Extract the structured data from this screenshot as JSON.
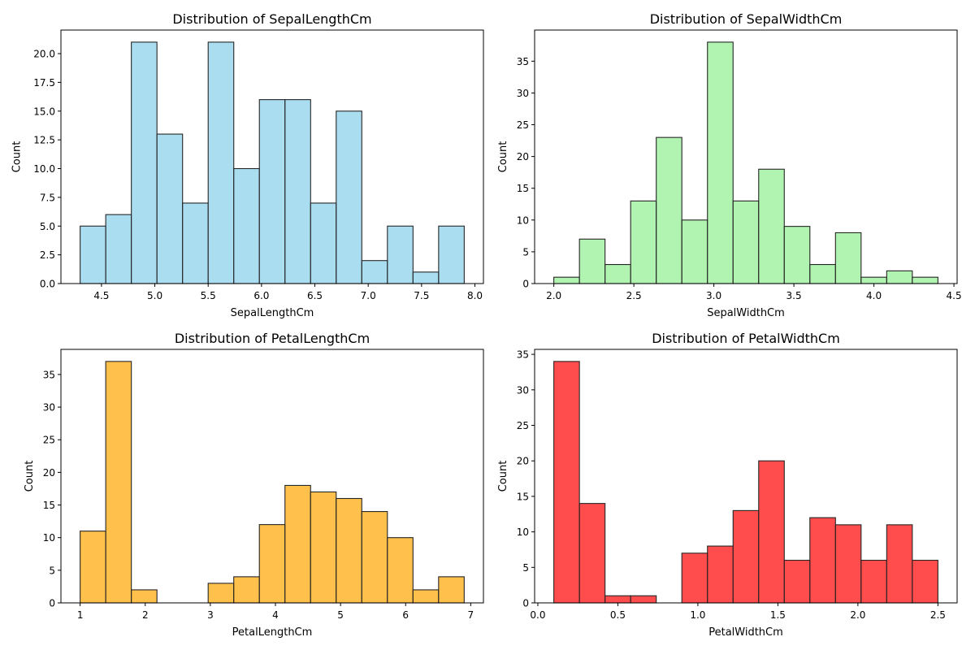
{
  "chart_data": [
    {
      "type": "bar",
      "title": "Distribution of SepalLengthCm",
      "xlabel": "SepalLengthCm",
      "ylabel": "Count",
      "color": "#87ceeb",
      "bin_start": 4.3,
      "bin_width": 0.24,
      "values": [
        5,
        6,
        21,
        13,
        7,
        21,
        10,
        16,
        16,
        7,
        15,
        2,
        5,
        1,
        5
      ],
      "xlim": [
        4.12,
        8.08
      ],
      "ylim": [
        0,
        22.05
      ],
      "xticks": [
        4.5,
        5.0,
        5.5,
        6.0,
        6.5,
        7.0,
        7.5,
        8.0
      ],
      "xtick_labels": [
        "4.5",
        "5.0",
        "5.5",
        "6.0",
        "6.5",
        "7.0",
        "7.5",
        "8.0"
      ],
      "yticks": [
        0,
        2.5,
        5,
        7.5,
        10,
        12.5,
        15,
        17.5,
        20
      ],
      "ytick_labels": [
        "0.0",
        "2.5",
        "5.0",
        "7.5",
        "10.0",
        "12.5",
        "15.0",
        "17.5",
        "20.0"
      ],
      "grid": false
    },
    {
      "type": "bar",
      "title": "Distribution of SepalWidthCm",
      "xlabel": "SepalWidthCm",
      "ylabel": "Count",
      "color": "#90ee90",
      "bin_start": 2.0,
      "bin_width": 0.16,
      "values": [
        1,
        7,
        3,
        13,
        23,
        10,
        38,
        13,
        18,
        9,
        3,
        8,
        1,
        2,
        1
      ],
      "xlim": [
        1.88,
        4.52
      ],
      "ylim": [
        0,
        39.9
      ],
      "xticks": [
        2.0,
        2.5,
        3.0,
        3.5,
        4.0,
        4.5
      ],
      "xtick_labels": [
        "2.0",
        "2.5",
        "3.0",
        "3.5",
        "4.0",
        "4.5"
      ],
      "yticks": [
        0,
        5,
        10,
        15,
        20,
        25,
        30,
        35
      ],
      "ytick_labels": [
        "0",
        "5",
        "10",
        "15",
        "20",
        "25",
        "30",
        "35"
      ],
      "grid": false
    },
    {
      "type": "bar",
      "title": "Distribution of PetalLengthCm",
      "xlabel": "PetalLengthCm",
      "ylabel": "Count",
      "color": "#ffa500",
      "bin_start": 1.0,
      "bin_width": 0.3933,
      "values": [
        11,
        37,
        2,
        0,
        0,
        3,
        4,
        12,
        18,
        17,
        16,
        14,
        10,
        2,
        4
      ],
      "xlim": [
        0.705,
        7.195
      ],
      "ylim": [
        0,
        38.85
      ],
      "xticks": [
        1,
        2,
        3,
        4,
        5,
        6,
        7
      ],
      "xtick_labels": [
        "1",
        "2",
        "3",
        "4",
        "5",
        "6",
        "7"
      ],
      "yticks": [
        0,
        5,
        10,
        15,
        20,
        25,
        30,
        35
      ],
      "ytick_labels": [
        "0",
        "5",
        "10",
        "15",
        "20",
        "25",
        "30",
        "35"
      ],
      "grid": false
    },
    {
      "type": "bar",
      "title": "Distribution of PetalWidthCm",
      "xlabel": "PetalWidthCm",
      "ylabel": "Count",
      "color": "#ff0000",
      "bin_start": 0.1,
      "bin_width": 0.16,
      "values": [
        34,
        14,
        1,
        1,
        0,
        7,
        8,
        13,
        20,
        6,
        12,
        11,
        6,
        11,
        6
      ],
      "xlim": [
        -0.02,
        2.62
      ],
      "ylim": [
        0,
        35.7
      ],
      "xticks": [
        0.0,
        0.5,
        1.0,
        1.5,
        2.0,
        2.5
      ],
      "xtick_labels": [
        "0.0",
        "0.5",
        "1.0",
        "1.5",
        "2.0",
        "2.5"
      ],
      "yticks": [
        0,
        5,
        10,
        15,
        20,
        25,
        30,
        35
      ],
      "ytick_labels": [
        "0",
        "5",
        "10",
        "15",
        "20",
        "25",
        "30",
        "35"
      ],
      "grid": false
    }
  ]
}
